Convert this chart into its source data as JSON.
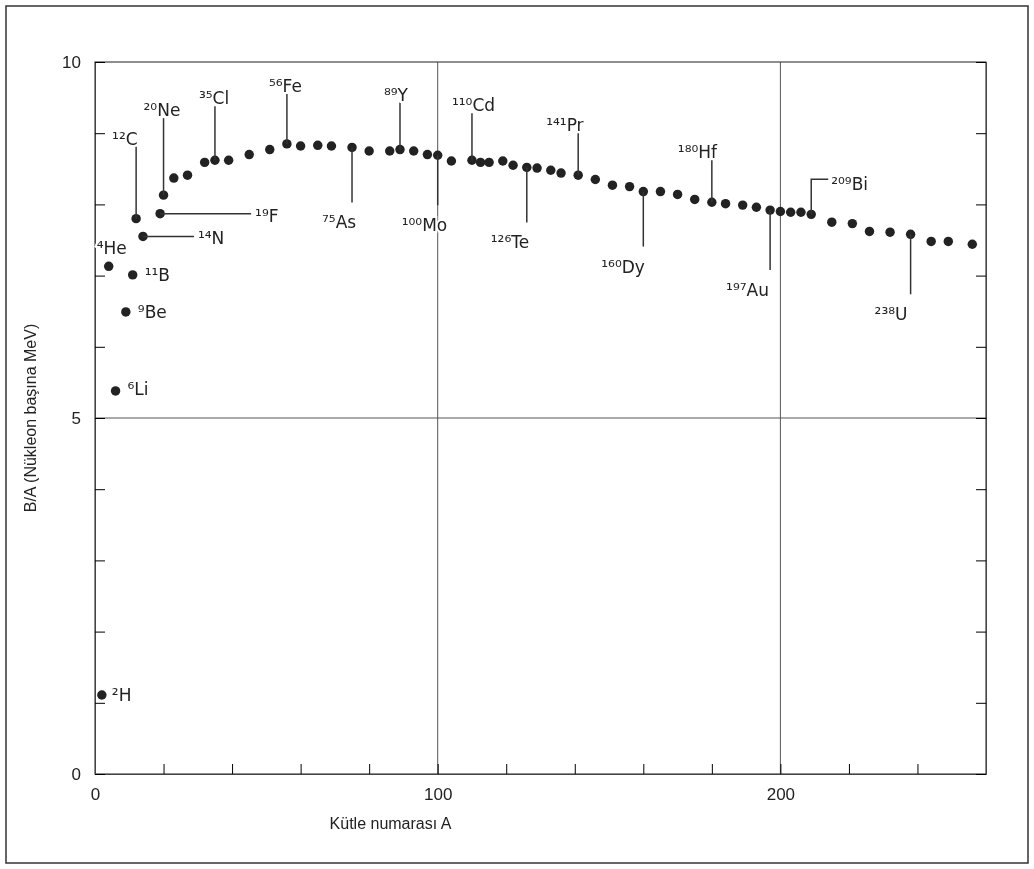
{
  "chart_data": {
    "type": "scatter",
    "xlabel": "Kütle numarası A",
    "ylabel": "B/A (Nükleon başına MeV)",
    "xlim": [
      0,
      260
    ],
    "ylim": [
      0,
      10
    ],
    "xticks": [
      0,
      {
        "value": 20,
        "label": null
      },
      {
        "value": 40,
        "label": null
      },
      {
        "value": 60,
        "label": null
      },
      {
        "value": 80,
        "label": null
      },
      100,
      {
        "value": 120,
        "label": null
      },
      {
        "value": 140,
        "label": null
      },
      {
        "value": 160,
        "label": null
      },
      {
        "value": 180,
        "label": null
      },
      200,
      {
        "value": 220,
        "label": null
      },
      {
        "value": 240,
        "label": null
      }
    ],
    "yticks": [
      0,
      {
        "value": 1,
        "label": null
      },
      {
        "value": 2,
        "label": null
      },
      {
        "value": 3,
        "label": null
      },
      {
        "value": 4,
        "label": null
      },
      5,
      {
        "value": 6,
        "label": null
      },
      {
        "value": 7,
        "label": null
      },
      {
        "value": 8,
        "label": null
      },
      {
        "value": 9,
        "label": null
      },
      10
    ],
    "grid": true,
    "marker": "circle",
    "series": [
      {
        "color": "#222222",
        "x": [
          2,
          4,
          6,
          9,
          11,
          12,
          14,
          19,
          20,
          23,
          27,
          32,
          35,
          39,
          45,
          51,
          56,
          60,
          65,
          69,
          75,
          80,
          86,
          89,
          93,
          97,
          100,
          104,
          110,
          112.5,
          115,
          119,
          122,
          126,
          129,
          133,
          136,
          141,
          146,
          151,
          156,
          160,
          165,
          170,
          175,
          180,
          184,
          189,
          193,
          197,
          200,
          203,
          206,
          209,
          215,
          221,
          226,
          232,
          238,
          244,
          249,
          256
        ],
        "values": [
          1.11,
          7.13,
          5.38,
          6.49,
          7.01,
          7.8,
          7.55,
          7.87,
          8.13,
          8.37,
          8.41,
          8.59,
          8.62,
          8.62,
          8.7,
          8.77,
          8.85,
          8.82,
          8.83,
          8.82,
          8.8,
          8.75,
          8.75,
          8.77,
          8.75,
          8.7,
          8.69,
          8.61,
          8.62,
          8.59,
          8.59,
          8.61,
          8.55,
          8.52,
          8.51,
          8.48,
          8.44,
          8.41,
          8.35,
          8.27,
          8.25,
          8.18,
          8.18,
          8.14,
          8.07,
          8.03,
          8.01,
          7.99,
          7.96,
          7.92,
          7.9,
          7.89,
          7.89,
          7.86,
          7.75,
          7.73,
          7.62,
          7.61,
          7.58,
          7.48,
          7.48,
          7.44
        ]
      }
    ],
    "annotations": [
      {
        "text": "²H",
        "x": 2,
        "y": 1.11
      },
      {
        "text": "⁴He",
        "x": 4,
        "y": 7.13
      },
      {
        "text": "⁶Li",
        "x": 6,
        "y": 5.38
      },
      {
        "text": "⁹Be",
        "x": 9,
        "y": 6.49
      },
      {
        "text": "¹¹B",
        "x": 11,
        "y": 7.01
      },
      {
        "text": "¹²C",
        "x": 12,
        "y": 7.8
      },
      {
        "text": "¹⁴N",
        "x": 14,
        "y": 7.55
      },
      {
        "text": "¹⁹F",
        "x": 19,
        "y": 7.87
      },
      {
        "text": "²⁰Ne",
        "x": 20,
        "y": 8.13
      },
      {
        "text": "³⁵Cl",
        "x": 35,
        "y": 8.62
      },
      {
        "text": "⁵⁶Fe",
        "x": 56,
        "y": 8.85
      },
      {
        "text": "⁷⁵As",
        "x": 75,
        "y": 8.8
      },
      {
        "text": "⁸⁹Y",
        "x": 89,
        "y": 8.77
      },
      {
        "text": "¹⁰⁰Mo",
        "x": 100,
        "y": 8.69
      },
      {
        "text": "¹¹⁰Cd",
        "x": 110,
        "y": 8.62
      },
      {
        "text": "¹²⁶Te",
        "x": 126,
        "y": 8.52
      },
      {
        "text": "¹⁴¹Pr",
        "x": 141,
        "y": 8.41
      },
      {
        "text": "¹⁶⁰Dy",
        "x": 160,
        "y": 8.18
      },
      {
        "text": "¹⁸⁰Hf",
        "x": 180,
        "y": 8.03
      },
      {
        "text": "¹⁹⁷Au",
        "x": 197,
        "y": 7.92
      },
      {
        "text": "²⁰⁹Bi",
        "x": 209,
        "y": 7.86
      },
      {
        "text": "²³⁸U",
        "x": 238,
        "y": 7.58
      }
    ]
  }
}
